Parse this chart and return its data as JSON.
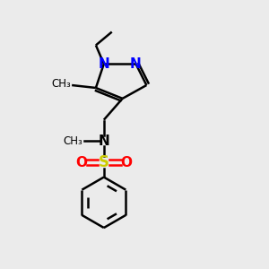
{
  "bg_color": "#ebebeb",
  "bond_color": "#000000",
  "n_color": "#0000ff",
  "s_color": "#cccc00",
  "o_color": "#ff0000",
  "line_width": 1.8,
  "font_size": 10,
  "fig_size": [
    3.0,
    3.0
  ],
  "dpi": 100,
  "xlim": [
    0,
    10
  ],
  "ylim": [
    0,
    10
  ]
}
